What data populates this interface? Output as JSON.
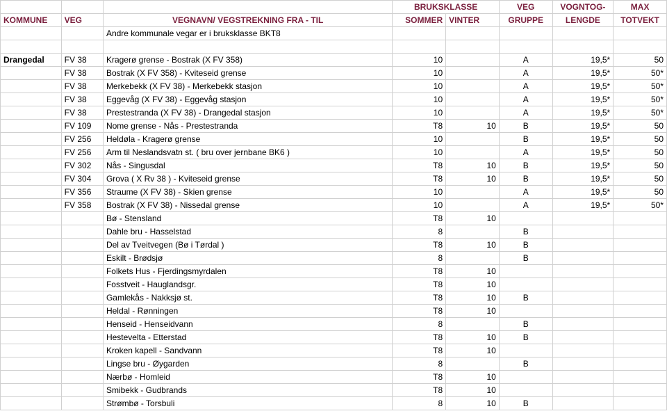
{
  "header": {
    "row1": {
      "kommune": "",
      "veg": "",
      "navn": "",
      "sommer": "BRUKSKLASSE",
      "vinter": "",
      "gruppe": "VEG",
      "lengde": "VOGNTOG-",
      "totvekt": "MAX"
    },
    "row2": {
      "kommune": "KOMMUNE",
      "veg": "VEG",
      "navn": "VEGNAVN/ VEGSTREKNING FRA - TIL",
      "sommer": "SOMMER",
      "vinter": "VINTER",
      "gruppe": "GRUPPE",
      "lengde": "LENGDE",
      "totvekt": "TOTVEKT"
    }
  },
  "rows": [
    {
      "kommune": "",
      "veg": "",
      "navn": "Andre kommunale vegar er i bruksklasse BKT8",
      "sommer": "",
      "vinter": "",
      "gruppe": "",
      "lengde": "",
      "totvekt": ""
    },
    {
      "kommune": "",
      "veg": "",
      "navn": "",
      "sommer": "",
      "vinter": "",
      "gruppe": "",
      "lengde": "",
      "totvekt": ""
    },
    {
      "kommune": "Drangedal",
      "veg": "FV 38",
      "navn": "Kragerø grense - Bostrak (X FV 358)",
      "sommer": "10",
      "vinter": "",
      "gruppe": "A",
      "lengde": "19,5*",
      "totvekt": "50"
    },
    {
      "kommune": "",
      "veg": "FV 38",
      "navn": "Bostrak (X FV 358) - Kviteseid grense",
      "sommer": "10",
      "vinter": "",
      "gruppe": "A",
      "lengde": "19,5*",
      "totvekt": "50*"
    },
    {
      "kommune": "",
      "veg": "FV 38",
      "navn": "Merkebekk (X FV 38) - Merkebekk stasjon",
      "sommer": "10",
      "vinter": "",
      "gruppe": "A",
      "lengde": "19,5*",
      "totvekt": "50*"
    },
    {
      "kommune": "",
      "veg": "FV 38",
      "navn": "Eggevåg (X FV 38) - Eggevåg stasjon",
      "sommer": "10",
      "vinter": "",
      "gruppe": "A",
      "lengde": "19,5*",
      "totvekt": "50*"
    },
    {
      "kommune": "",
      "veg": "FV 38",
      "navn": "Prestestranda (X FV 38) - Drangedal stasjon",
      "sommer": "10",
      "vinter": "",
      "gruppe": "A",
      "lengde": "19,5*",
      "totvekt": "50*"
    },
    {
      "kommune": "",
      "veg": "FV 109",
      "navn": "Nome grense - Nås - Prestestranda",
      "sommer": "T8",
      "vinter": "10",
      "gruppe": "B",
      "lengde": "19,5*",
      "totvekt": "50"
    },
    {
      "kommune": "",
      "veg": "FV 256",
      "navn": "Heldøla - Kragerø grense",
      "sommer": "10",
      "vinter": "",
      "gruppe": "B",
      "lengde": "19,5*",
      "totvekt": "50"
    },
    {
      "kommune": "",
      "veg": "FV 256",
      "navn": "Arm til Neslandsvatn st. ( bru over jernbane BK6 )",
      "sommer": "10",
      "vinter": "",
      "gruppe": "A",
      "lengde": "19,5*",
      "totvekt": "50"
    },
    {
      "kommune": "",
      "veg": "FV 302",
      "navn": "Nås - Singusdal",
      "sommer": "T8",
      "vinter": "10",
      "gruppe": "B",
      "lengde": "19,5*",
      "totvekt": "50"
    },
    {
      "kommune": "",
      "veg": "FV 304",
      "navn": "Grova ( X Rv 38 ) - Kviteseid grense",
      "sommer": "T8",
      "vinter": "10",
      "gruppe": "B",
      "lengde": "19,5*",
      "totvekt": "50"
    },
    {
      "kommune": "",
      "veg": "FV 356",
      "navn": "Straume (X FV 38) - Skien grense",
      "sommer": "10",
      "vinter": "",
      "gruppe": "A",
      "lengde": "19,5*",
      "totvekt": "50"
    },
    {
      "kommune": "",
      "veg": "FV 358",
      "navn": "Bostrak (X FV 38) - Nissedal grense",
      "sommer": "10",
      "vinter": "",
      "gruppe": "A",
      "lengde": "19,5*",
      "totvekt": "50*"
    },
    {
      "kommune": "",
      "veg": "",
      "navn": "Bø - Stensland",
      "sommer": "T8",
      "vinter": "10",
      "gruppe": "",
      "lengde": "",
      "totvekt": ""
    },
    {
      "kommune": "",
      "veg": "",
      "navn": "Dahle bru - Hasselstad",
      "sommer": "8",
      "vinter": "",
      "gruppe": "B",
      "lengde": "",
      "totvekt": ""
    },
    {
      "kommune": "",
      "veg": "",
      "navn": "Del av Tveitvegen (Bø i Tørdal )",
      "sommer": "T8",
      "vinter": "10",
      "gruppe": "B",
      "lengde": "",
      "totvekt": ""
    },
    {
      "kommune": "",
      "veg": "",
      "navn": "Eskilt - Brødsjø",
      "sommer": "8",
      "vinter": "",
      "gruppe": "B",
      "lengde": "",
      "totvekt": ""
    },
    {
      "kommune": "",
      "veg": "",
      "navn": "Folkets Hus - Fjerdingsmyrdalen",
      "sommer": "T8",
      "vinter": "10",
      "gruppe": "",
      "lengde": "",
      "totvekt": ""
    },
    {
      "kommune": "",
      "veg": "",
      "navn": "Fosstveit - Hauglandsgr.",
      "sommer": "T8",
      "vinter": "10",
      "gruppe": "",
      "lengde": "",
      "totvekt": ""
    },
    {
      "kommune": "",
      "veg": "",
      "navn": "Gamlekås - Nakksjø st.",
      "sommer": "T8",
      "vinter": "10",
      "gruppe": "B",
      "lengde": "",
      "totvekt": ""
    },
    {
      "kommune": "",
      "veg": "",
      "navn": "Heldal - Rønningen",
      "sommer": "T8",
      "vinter": "10",
      "gruppe": "",
      "lengde": "",
      "totvekt": ""
    },
    {
      "kommune": "",
      "veg": "",
      "navn": "Henseid - Henseidvann",
      "sommer": "8",
      "vinter": "",
      "gruppe": "B",
      "lengde": "",
      "totvekt": ""
    },
    {
      "kommune": "",
      "veg": "",
      "navn": "Hestevelta - Etterstad",
      "sommer": "T8",
      "vinter": "10",
      "gruppe": "B",
      "lengde": "",
      "totvekt": ""
    },
    {
      "kommune": "",
      "veg": "",
      "navn": "Kroken kapell - Sandvann",
      "sommer": "T8",
      "vinter": "10",
      "gruppe": "",
      "lengde": "",
      "totvekt": ""
    },
    {
      "kommune": "",
      "veg": "",
      "navn": "Lingse bru - Øygarden",
      "sommer": "8",
      "vinter": "",
      "gruppe": "B",
      "lengde": "",
      "totvekt": ""
    },
    {
      "kommune": "",
      "veg": "",
      "navn": "Nærbø - Homleid",
      "sommer": "T8",
      "vinter": "10",
      "gruppe": "",
      "lengde": "",
      "totvekt": ""
    },
    {
      "kommune": "",
      "veg": "",
      "navn": "Smibekk - Gudbrands",
      "sommer": "T8",
      "vinter": "10",
      "gruppe": "",
      "lengde": "",
      "totvekt": ""
    },
    {
      "kommune": "",
      "veg": "",
      "navn": "Strømbø - Torsbuli",
      "sommer": "8",
      "vinter": "10",
      "gruppe": "B",
      "lengde": "",
      "totvekt": ""
    }
  ],
  "colors": {
    "header_text": "#7a1f3d",
    "border": "#d0d0d0",
    "bg": "#ffffff",
    "text": "#000000"
  }
}
